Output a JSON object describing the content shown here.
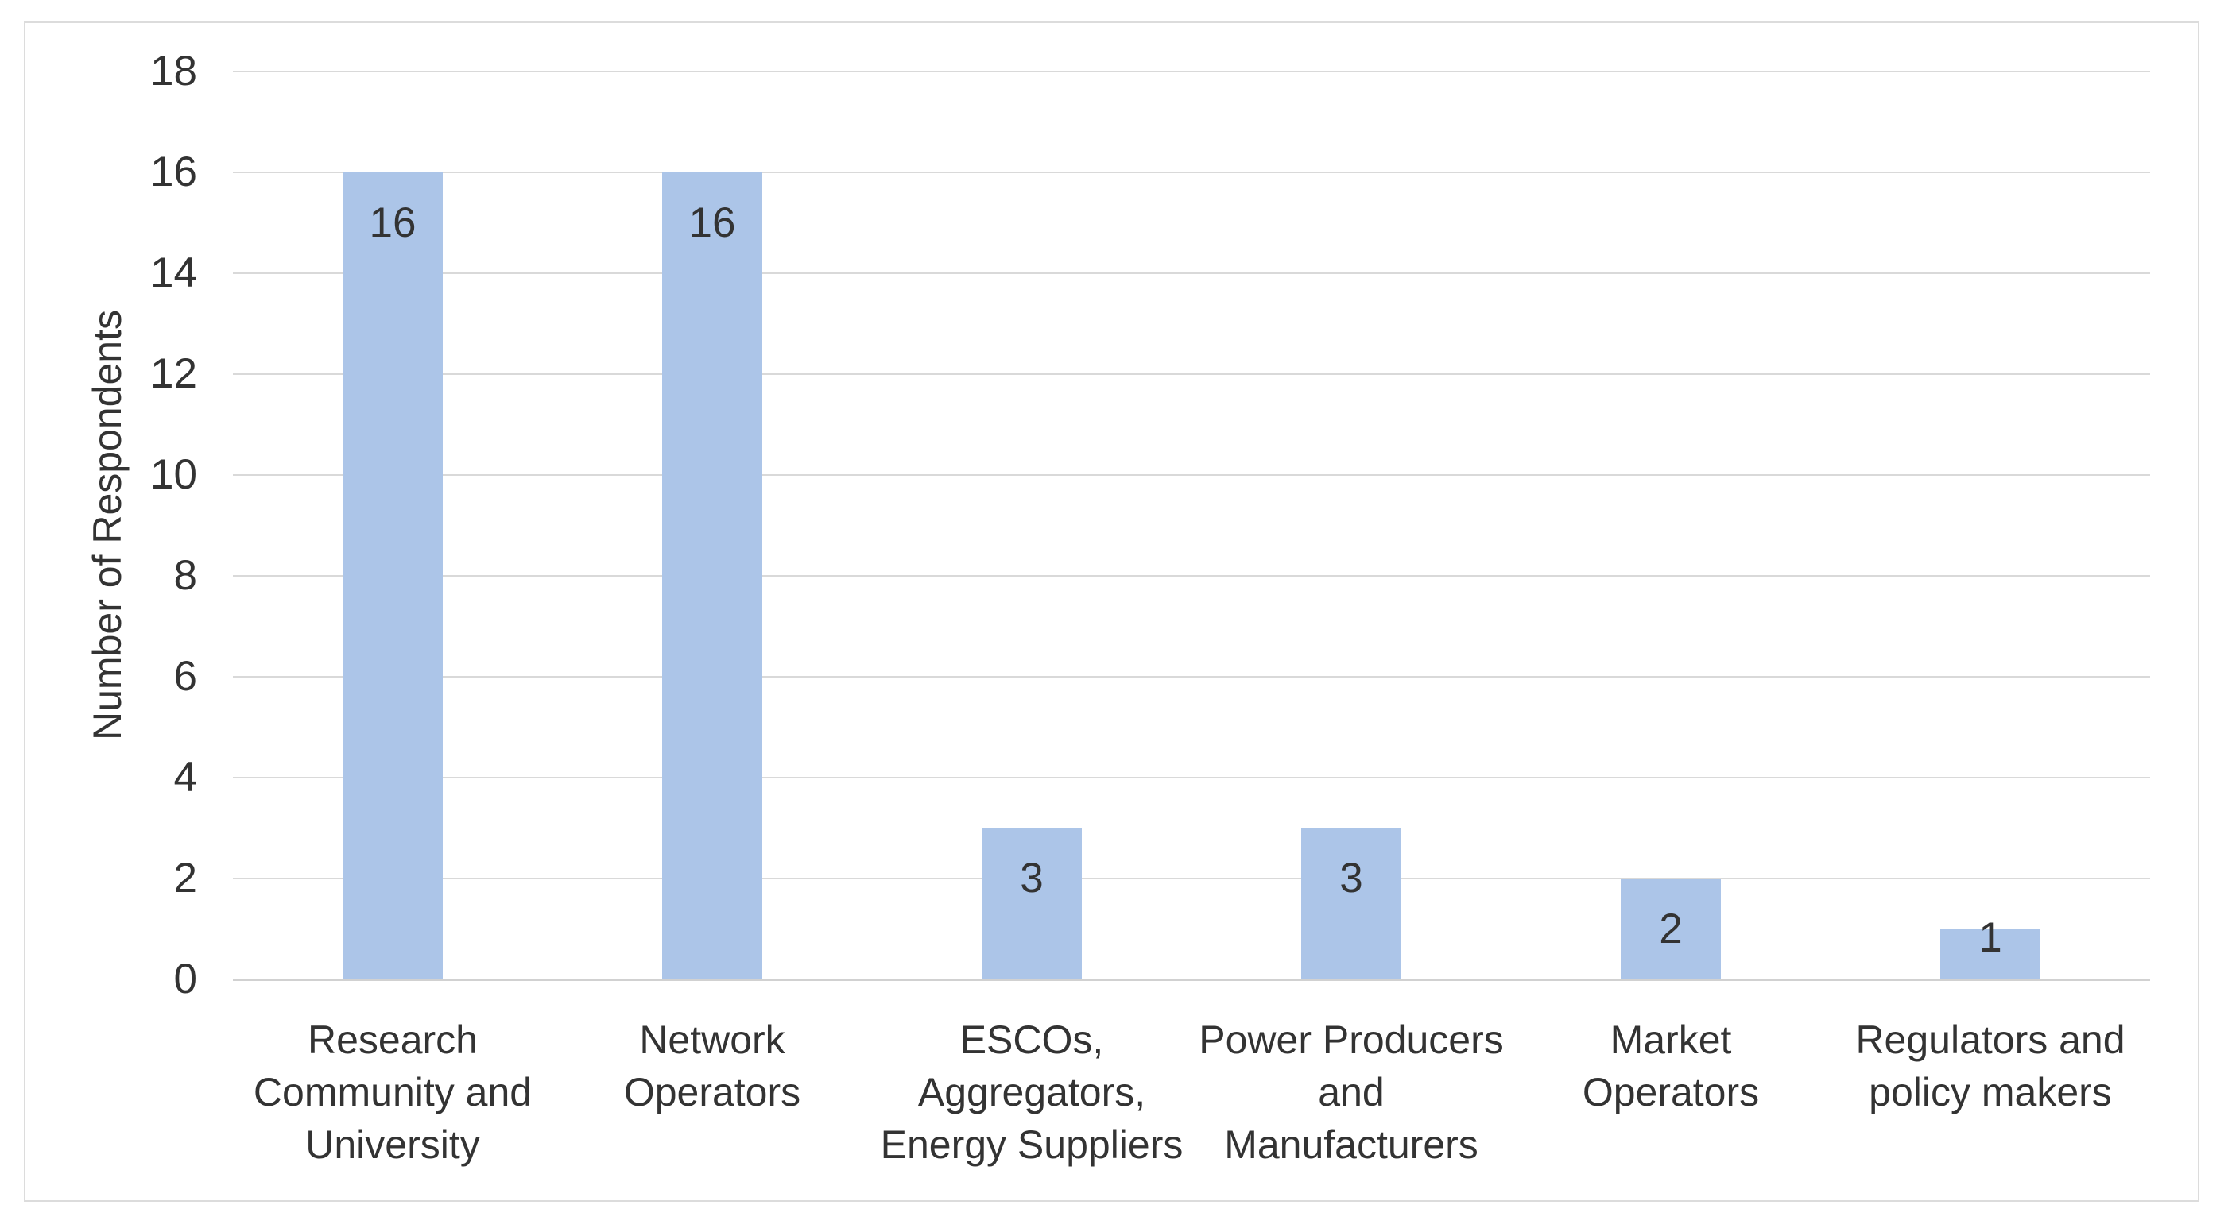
{
  "chart_data": {
    "type": "bar",
    "title": "",
    "xlabel": "",
    "ylabel": "Number of Respondents",
    "categories": [
      "Research\nCommunity and\nUniversity",
      "Network\nOperators",
      "ESCOs,\nAggregators,\nEnergy Suppliers",
      "Power Producers\nand\nManufacturers",
      "Market\nOperators",
      "Regulators and\npolicy makers"
    ],
    "values": [
      16,
      16,
      3,
      3,
      2,
      1
    ],
    "data_labels": [
      "16",
      "16",
      "3",
      "3",
      "2",
      "1"
    ],
    "ylim": [
      0,
      18
    ],
    "ytick_step": 2,
    "yticks": [
      18,
      16,
      14,
      12,
      10,
      8,
      6,
      4,
      2,
      0
    ],
    "grid": true,
    "legend": "none",
    "colors": {
      "bar_fill": "#acc5e8",
      "gridline": "#d9d9d9",
      "axis_line": "#d1d1d1",
      "frame_border": "#dcdcdc",
      "text": "#333333"
    }
  }
}
